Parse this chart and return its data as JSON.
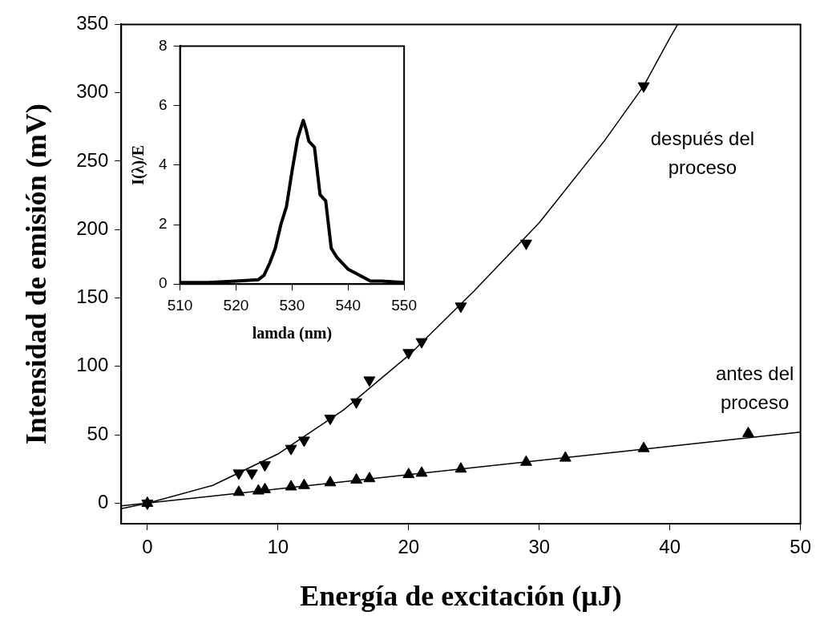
{
  "chart_data": [
    {
      "type": "scatter",
      "xlabel": "Energía de excitación (μJ)",
      "ylabel": "Intensidad de emisión (mV)",
      "xlim": [
        -2,
        50
      ],
      "xticks": [
        0,
        10,
        20,
        30,
        40,
        50
      ],
      "ylim": [
        -15,
        350
      ],
      "yticks": [
        0,
        50,
        100,
        150,
        200,
        250,
        300,
        350
      ],
      "grid": false,
      "legend": false,
      "series": [
        {
          "name": "antes del proceso",
          "marker": "triangle",
          "color": "#000000",
          "x": [
            0,
            7,
            8.5,
            9,
            11,
            12,
            14,
            16,
            17,
            20,
            21,
            24,
            29,
            32,
            38,
            46
          ],
          "values": [
            0,
            8,
            9,
            10,
            12,
            13,
            15,
            17,
            18,
            21,
            22,
            25,
            30,
            33,
            40,
            51
          ]
        },
        {
          "name": "después del proceso",
          "marker": "triangle",
          "color": "#000000",
          "x": [
            0,
            7,
            8,
            9,
            11,
            12,
            14,
            16,
            17,
            20,
            21,
            24,
            29,
            38
          ],
          "values": [
            0,
            22,
            22,
            28,
            40,
            46,
            62,
            74,
            90,
            110,
            118,
            144,
            190,
            305
          ]
        },
        {
          "type": "line",
          "marker": "none",
          "color": "#000000",
          "x": [
            -2,
            50
          ],
          "values": [
            -2,
            52
          ]
        },
        {
          "type": "line",
          "marker": "none",
          "color": "#000000",
          "x": [
            -2,
            0,
            5,
            10,
            15,
            20,
            25,
            30,
            35,
            38,
            40,
            40.6
          ],
          "values": [
            -4,
            0,
            13,
            36,
            68,
            108,
            155,
            205,
            265,
            305,
            340,
            350
          ]
        }
      ]
    },
    {
      "type": "line",
      "xlabel": "lamda (nm)",
      "ylabel": "I(λ)/E",
      "xlim": [
        510,
        550
      ],
      "xticks": [
        510,
        520,
        530,
        540,
        550
      ],
      "ylim": [
        0,
        8
      ],
      "yticks": [
        0,
        2,
        4,
        6,
        8
      ],
      "grid": false,
      "legend": false,
      "series": [
        {
          "color": "#000000",
          "marker": "none",
          "x": [
            510,
            515,
            520,
            524,
            525,
            526,
            527,
            528,
            529,
            530,
            531,
            532,
            532.5,
            533,
            534,
            535,
            536,
            537,
            538,
            540,
            542,
            544,
            546,
            550
          ],
          "values": [
            0.05,
            0.05,
            0.1,
            0.15,
            0.3,
            0.7,
            1.2,
            2.0,
            2.6,
            3.8,
            4.9,
            5.5,
            5.2,
            4.8,
            4.6,
            3.0,
            2.8,
            1.2,
            0.9,
            0.5,
            0.3,
            0.1,
            0.1,
            0.05
          ]
        }
      ]
    }
  ]
}
